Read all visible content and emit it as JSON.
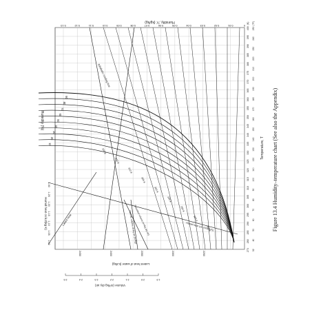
{
  "chart_data": {
    "type": "line",
    "caption": "Figure 13.4   Humidity–temperature chart (See also the Appendix)",
    "temperature_axis": {
      "label": "Temperature, T",
      "kelvin_ticks": [
        "273",
        "280",
        "285",
        "290",
        "295",
        "300",
        "305",
        "310",
        "315",
        "320",
        "325",
        "330",
        "335",
        "340",
        "345",
        "350",
        "355",
        "360",
        "365",
        "370",
        "375",
        "380",
        "385",
        "390",
        "395",
        "400"
      ],
      "kelvin_unit": "(K)",
      "fahrenheit_ticks": [
        "32",
        "40",
        "50",
        "60",
        "70",
        "80",
        "90",
        "100",
        "110",
        "120",
        "130",
        "140",
        "150",
        "160",
        "170",
        "180",
        "190",
        "200",
        "210",
        "220",
        "230",
        "240",
        "250"
      ],
      "fahrenheit_unit": "(°F)"
    },
    "humidity_axis": {
      "label": "Humidity, ℋ (kg/kg)",
      "ticks": [
        "0.13",
        "0.12",
        "0.11",
        "0.10",
        "0.09",
        "0.08",
        "0.07",
        "0.06",
        "0.05",
        "0.04",
        "0.03",
        "0.02",
        "0.01",
        "0"
      ]
    },
    "percent_humidity_label": "Humidity (%)",
    "percent_humidity_curves": [
      "100",
      "90",
      "80",
      "70",
      "60",
      "50",
      "40",
      "30",
      "20",
      "10"
    ],
    "percent_labels_left": [
      "90",
      "80",
      "70",
      "60",
      "50",
      "40",
      "30",
      "20",
      "10"
    ],
    "adiabatic_labels": [
      "330 K",
      "320 K",
      "310 K",
      "305 K",
      "300 K",
      "295 K",
      "290 K",
      "285 K",
      "280 K"
    ],
    "humid_heat": {
      "label": "Humid heat cs kJ/(kg K)",
      "ticks": [
        "1.00",
        "1.05",
        "1.10",
        "1.15",
        "1.20",
        "1.25",
        "1.30"
      ]
    },
    "latent_heat": {
      "label": "Latent heat of water (kJ/kg)",
      "ticks": [
        "2450",
        "2400",
        "2350",
        "2300",
        "2250"
      ],
      "sub_ticks": [
        "2.5",
        "2.4",
        "2.3",
        "2.2",
        "2.1",
        "2.0",
        "1.9"
      ]
    },
    "volume_axis": {
      "label": "Volume (m³/kg dry air)"
    },
    "line_labels": {
      "humidity_cooling": "Adiabatic cooling line",
      "latent_heat": "Latent heat",
      "humid_heat": "Humid heat (cs, kJ/(kg K))",
      "saturated_volume": "Saturated volume (m³/kg dry air)",
      "dry_air_volume": "Specific volume of dry air (m³/kg)"
    },
    "grid": true
  }
}
